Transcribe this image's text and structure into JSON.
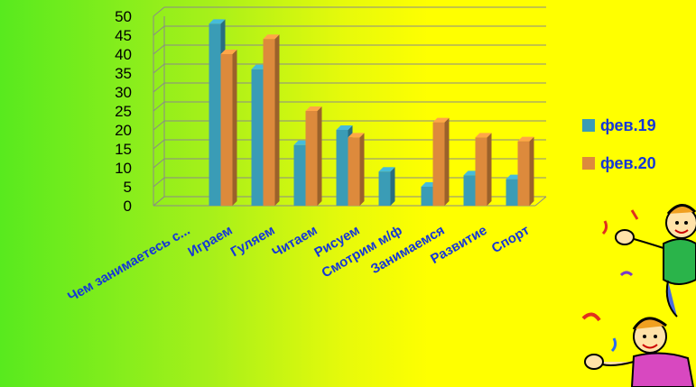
{
  "chart_data": {
    "type": "bar",
    "categories": [
      "Чем занимаетесь с...",
      "Играем",
      "Гуляем",
      "Читаем",
      "Рисуем",
      "Смотрим м/ф",
      "Занимаемся",
      "Развитие",
      "Спорт"
    ],
    "series": [
      {
        "name": "фев.19",
        "color": "#3a9cb6",
        "values": [
          0,
          48,
          36,
          16,
          20,
          9,
          5,
          8,
          7
        ]
      },
      {
        "name": "фев.20",
        "color": "#dd8a3c",
        "values": [
          0,
          40,
          44,
          25,
          18,
          0,
          22,
          18,
          17
        ]
      }
    ],
    "yticks": [
      0,
      5,
      10,
      15,
      20,
      25,
      30,
      35,
      40,
      45,
      50
    ],
    "ylim": [
      0,
      50
    ],
    "grid": true,
    "legend_position": "right"
  },
  "legend": {
    "items": [
      {
        "label": "фев.19",
        "color": "#3a9cb6"
      },
      {
        "label": "фев.20",
        "color": "#dd8a3c"
      }
    ]
  },
  "decoration": {
    "icon": "dancing-kids-clipart-icon"
  }
}
